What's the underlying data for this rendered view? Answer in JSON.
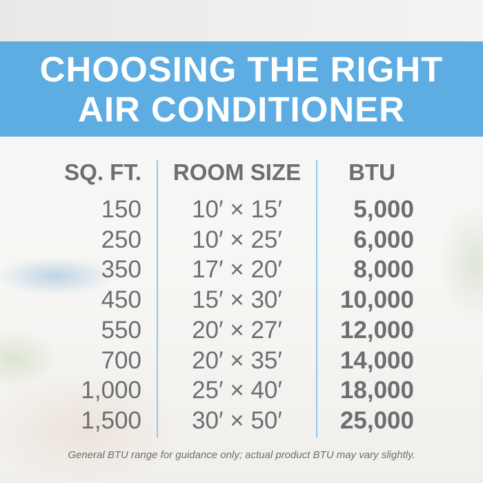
{
  "title": {
    "line1": "CHOOSING THE RIGHT",
    "line2": "AIR CONDITIONER"
  },
  "banner_color": "#5dade2",
  "table": {
    "headers": [
      "SQ. FT.",
      "ROOM SIZE",
      "BTU"
    ],
    "rows": [
      {
        "sqft": "150",
        "room_size": "10′ × 15′",
        "btu": "5,000"
      },
      {
        "sqft": "250",
        "room_size": "10′ × 25′",
        "btu": "6,000"
      },
      {
        "sqft": "350",
        "room_size": "17′ × 20′",
        "btu": "8,000"
      },
      {
        "sqft": "450",
        "room_size": "15′ × 30′",
        "btu": "10,000"
      },
      {
        "sqft": "550",
        "room_size": "20′ × 27′",
        "btu": "12,000"
      },
      {
        "sqft": "700",
        "room_size": "20′ × 35′",
        "btu": "14,000"
      },
      {
        "sqft": "1,000",
        "room_size": "25′ × 40′",
        "btu": "18,000"
      },
      {
        "sqft": "1,500",
        "room_size": "30′ × 50′",
        "btu": "25,000"
      }
    ]
  },
  "footnote": "General BTU range for guidance only; actual product BTU may vary slightly."
}
